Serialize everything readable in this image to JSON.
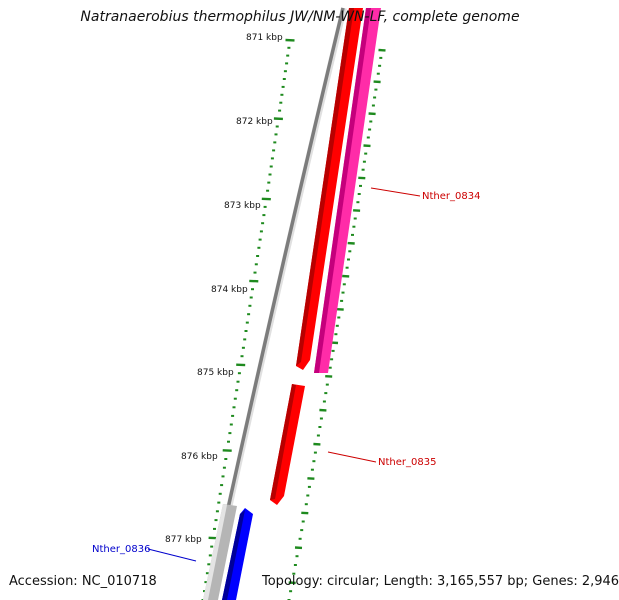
{
  "title": "Natranaerobius thermophilus JW/NM-WN-LF, complete genome",
  "footer": {
    "accession": "Accession: NC_010718",
    "topology": "Topology: circular; Length: 3,165,557 bp; Genes: 2,946"
  },
  "colors": {
    "tick": "#1e8a1e",
    "backbone": "#8a8a8a",
    "gene_red": "#ff0000",
    "gene_pink": "#ff2ca8",
    "gene_blue": "#0000ff",
    "gene_gray": "#b0b0b0",
    "label_red": "#cc0000",
    "label_blue": "#0000cc"
  },
  "kbp_labels": [
    "871 kbp",
    "872 kbp",
    "873 kbp",
    "874 kbp",
    "875 kbp",
    "876 kbp",
    "877 kbp"
  ],
  "genes": [
    {
      "name": "Nther_0834",
      "color": "#cc0000"
    },
    {
      "name": "Nther_0835",
      "color": "#cc0000"
    },
    {
      "name": "Nther_0836",
      "color": "#0000cc"
    }
  ]
}
